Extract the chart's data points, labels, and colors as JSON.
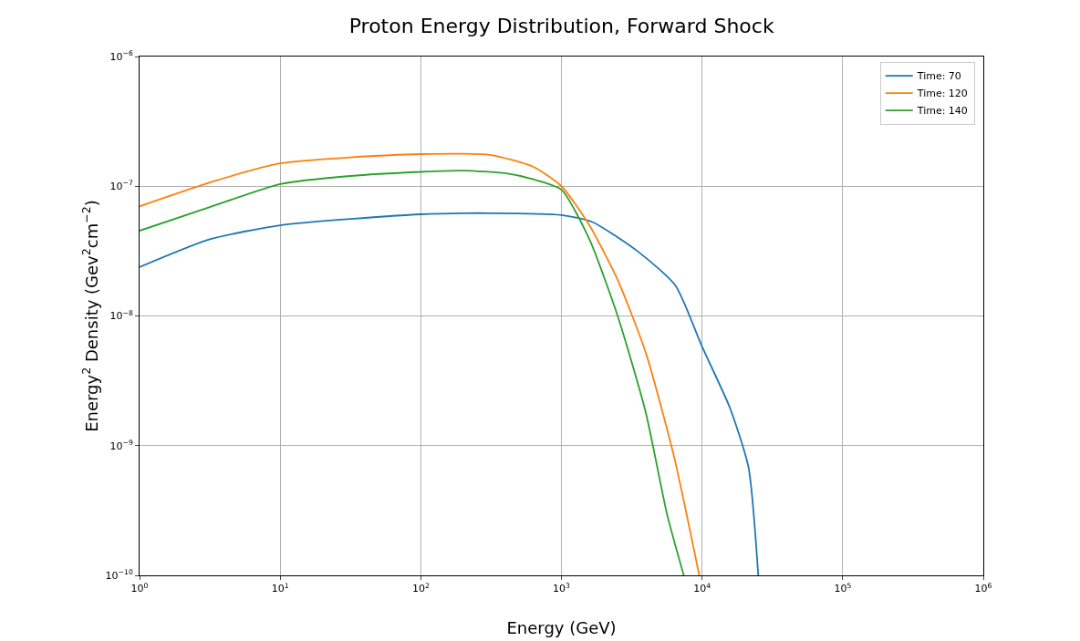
{
  "chart_data": {
    "type": "line",
    "title": "Proton Energy Distribution, Forward Shock",
    "xlabel": "Energy (GeV)",
    "ylabel": "Energy$^{2}$ Density (Gev$^{2}$cm$^{−2}$)",
    "log": "xy",
    "grid": true,
    "legend": "top right",
    "xlim": [
      1,
      1000000
    ],
    "ylim": [
      1e-10,
      1e-06
    ],
    "xticks": [
      {
        "value": 1,
        "label": "10$^{0}$"
      },
      {
        "value": 10,
        "label": "10$^{1}$"
      },
      {
        "value": 100,
        "label": "10$^{2}$"
      },
      {
        "value": 1000,
        "label": "10$^{3}$"
      },
      {
        "value": 10000,
        "label": "10$^{4}$"
      },
      {
        "value": 100000,
        "label": "10$^{5}$"
      },
      {
        "value": 1000000,
        "label": "10$^{6}$"
      }
    ],
    "yticks": [
      {
        "value": 1e-10,
        "label": "10$^{−10}$"
      },
      {
        "value": 1e-09,
        "label": "10$^{−9}$"
      },
      {
        "value": 1e-08,
        "label": "10$^{−8}$"
      },
      {
        "value": 1e-07,
        "label": "10$^{−7}$"
      },
      {
        "value": 1e-06,
        "label": "10$^{−6}$"
      }
    ],
    "series": [
      {
        "name": "Time: 70",
        "color": "#1f77b4",
        "x": [
          1,
          3.16,
          10,
          100,
          316,
          1000,
          1660,
          3550,
          6460,
          10000,
          15800,
          21400,
          25100
        ],
        "values": [
          2.38e-08,
          3.9e-08,
          5e-08,
          6.08e-08,
          6.2e-08,
          6e-08,
          5.3e-08,
          3.1e-08,
          1.72e-08,
          5.8e-09,
          1.95e-09,
          6.8e-10,
          1e-10
        ]
      },
      {
        "name": "Time: 120",
        "color": "#ff7f0e",
        "x": [
          1,
          3.16,
          10,
          31.6,
          100,
          316,
          631,
          1000,
          1580,
          2510,
          3980,
          6310,
          9550
        ],
        "values": [
          7e-08,
          1.07e-07,
          1.5e-07,
          1.67e-07,
          1.77e-07,
          1.74e-07,
          1.41e-07,
          1e-07,
          5e-08,
          1.9e-08,
          5.2e-09,
          8.3e-10,
          1e-10
        ]
      },
      {
        "name": "Time: 140",
        "color": "#2ca02c",
        "x": [
          1,
          3.16,
          10,
          31.6,
          100,
          200,
          398,
          631,
          1000,
          1580,
          2510,
          3980,
          5620,
          7410
        ],
        "values": [
          4.54e-08,
          6.9e-08,
          1.04e-07,
          1.2e-07,
          1.29e-07,
          1.32e-07,
          1.26e-07,
          1.13e-07,
          9.4e-08,
          3.9e-08,
          1e-08,
          1.8e-09,
          3e-10,
          1e-10
        ]
      }
    ]
  }
}
